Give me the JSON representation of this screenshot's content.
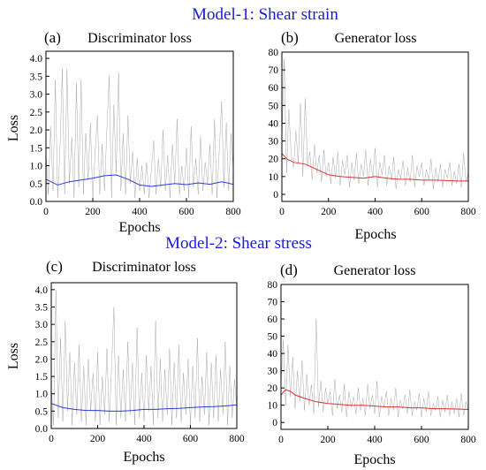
{
  "headings": {
    "model1": "Model-1: Shear strain",
    "model2": "Model-2: Shear stress"
  },
  "colors": {
    "heading": "#1a1ad6",
    "raw": "#8c8c8c",
    "disc_trend": "#2b3bd6",
    "gen_trend": "#e03030"
  },
  "chart_data": [
    {
      "id": "a",
      "type": "line",
      "panel_label": "(a)",
      "title": "Discriminator loss",
      "xlabel": "Epochs",
      "ylabel": "Loss",
      "xlim": [
        0,
        800
      ],
      "ylim": [
        0,
        4.2
      ],
      "xticks": [
        0,
        200,
        400,
        600,
        800
      ],
      "yticks": [
        0.0,
        0.5,
        1.0,
        1.5,
        2.0,
        2.5,
        3.0,
        3.5,
        4.0
      ],
      "ytick_labels": [
        "0.0",
        "0.5",
        "1.0",
        "1.5",
        "2.0",
        "2.5",
        "3.0",
        "3.5",
        "4.0"
      ],
      "grid": false,
      "series": [
        {
          "style": "raw",
          "x": [
            0,
            10,
            20,
            30,
            40,
            50,
            60,
            70,
            80,
            90,
            100,
            110,
            120,
            130,
            140,
            150,
            160,
            170,
            180,
            190,
            200,
            210,
            220,
            230,
            240,
            250,
            260,
            270,
            280,
            290,
            300,
            310,
            320,
            330,
            340,
            350,
            360,
            370,
            380,
            390,
            400,
            410,
            420,
            430,
            440,
            450,
            460,
            470,
            480,
            490,
            500,
            510,
            520,
            530,
            540,
            550,
            560,
            570,
            580,
            590,
            600,
            610,
            620,
            630,
            640,
            650,
            660,
            670,
            680,
            690,
            700,
            710,
            720,
            730,
            740,
            750,
            760,
            770,
            780,
            790,
            800
          ],
          "y": [
            1.4,
            0.2,
            2.1,
            0.3,
            3.4,
            0.1,
            1.5,
            3.7,
            0.2,
            3.7,
            0.5,
            1.8,
            0.1,
            3.3,
            0.4,
            3.4,
            0.2,
            1.9,
            0.6,
            2.2,
            0.1,
            1.4,
            2.4,
            0.2,
            1.6,
            0.3,
            2.0,
            3.5,
            0.1,
            2.7,
            0.8,
            3.6,
            0.3,
            1.9,
            0.2,
            2.4,
            0.5,
            1.4,
            0.1,
            1.2,
            0.3,
            1.0,
            0.2,
            1.1,
            0.1,
            0.9,
            1.7,
            0.2,
            1.2,
            0.4,
            2.0,
            0.3,
            1.3,
            0.1,
            1.6,
            0.5,
            2.3,
            0.2,
            1.0,
            0.3,
            1.5,
            0.1,
            2.1,
            0.4,
            1.2,
            0.2,
            1.8,
            0.3,
            1.1,
            0.5,
            1.6,
            0.2,
            2.3,
            0.1,
            1.4,
            2.8,
            0.4,
            2.2,
            0.3,
            1.9,
            0.9
          ]
        },
        {
          "style": "disc_trend",
          "x": [
            0,
            50,
            100,
            150,
            200,
            250,
            300,
            350,
            400,
            450,
            500,
            550,
            600,
            650,
            700,
            750,
            800
          ],
          "y": [
            0.62,
            0.46,
            0.55,
            0.6,
            0.65,
            0.72,
            0.74,
            0.62,
            0.46,
            0.42,
            0.46,
            0.5,
            0.47,
            0.52,
            0.48,
            0.55,
            0.48
          ]
        }
      ]
    },
    {
      "id": "b",
      "type": "line",
      "panel_label": "(b)",
      "title": "Generator loss",
      "xlabel": "Epochs",
      "ylabel": "",
      "xlim": [
        0,
        800
      ],
      "ylim": [
        -4,
        80
      ],
      "xticks": [
        0,
        200,
        400,
        600,
        800
      ],
      "yticks": [
        0,
        10,
        20,
        30,
        40,
        50,
        60,
        70,
        80
      ],
      "ytick_labels": [
        "0",
        "10",
        "20",
        "30",
        "40",
        "50",
        "60",
        "70",
        "80"
      ],
      "grid": false,
      "series": [
        {
          "style": "raw",
          "x": [
            0,
            10,
            20,
            30,
            40,
            50,
            60,
            70,
            80,
            90,
            100,
            110,
            120,
            130,
            140,
            150,
            160,
            170,
            180,
            190,
            200,
            210,
            220,
            230,
            240,
            250,
            260,
            270,
            280,
            290,
            300,
            310,
            320,
            330,
            340,
            350,
            360,
            370,
            380,
            390,
            400,
            410,
            420,
            430,
            440,
            450,
            460,
            470,
            480,
            490,
            500,
            510,
            520,
            530,
            540,
            550,
            560,
            570,
            580,
            590,
            600,
            610,
            620,
            630,
            640,
            650,
            660,
            670,
            680,
            690,
            700,
            710,
            720,
            730,
            740,
            750,
            760,
            770,
            780,
            790,
            800
          ],
          "y": [
            30,
            76,
            12,
            48,
            22,
            15,
            36,
            18,
            51,
            10,
            54,
            16,
            24,
            8,
            28,
            12,
            22,
            7,
            25,
            10,
            18,
            6,
            21,
            9,
            24,
            5,
            19,
            11,
            22,
            4,
            18,
            8,
            23,
            6,
            17,
            10,
            25,
            5,
            20,
            9,
            26,
            4,
            18,
            11,
            22,
            5,
            16,
            8,
            21,
            3,
            14,
            9,
            19,
            5,
            15,
            7,
            22,
            4,
            16,
            10,
            18,
            5,
            14,
            8,
            20,
            3,
            15,
            7,
            17,
            4,
            14,
            9,
            18,
            5,
            13,
            6,
            17,
            4,
            23,
            7,
            12
          ]
        },
        {
          "style": "gen_trend",
          "x": [
            0,
            20,
            50,
            100,
            150,
            200,
            250,
            300,
            350,
            400,
            450,
            500,
            550,
            600,
            650,
            700,
            750,
            800
          ],
          "y": [
            23,
            20,
            18,
            17,
            14,
            11,
            10,
            9.5,
            9,
            10,
            9,
            8.5,
            8.5,
            8,
            8,
            7.8,
            7.5,
            7.5
          ]
        }
      ]
    },
    {
      "id": "c",
      "type": "line",
      "panel_label": "(c)",
      "title": "Discriminator loss",
      "xlabel": "Epochs",
      "ylabel": "Loss",
      "xlim": [
        0,
        800
      ],
      "ylim": [
        0,
        4.2
      ],
      "xticks": [
        0,
        200,
        400,
        600,
        800
      ],
      "yticks": [
        0.0,
        0.5,
        1.0,
        1.5,
        2.0,
        2.5,
        3.0,
        3.5,
        4.0
      ],
      "ytick_labels": [
        "0.0",
        "0.5",
        "1.0",
        "1.5",
        "2.0",
        "2.5",
        "3.0",
        "3.5",
        "4.0"
      ],
      "grid": false,
      "series": [
        {
          "style": "raw",
          "x": [
            0,
            10,
            20,
            30,
            40,
            50,
            60,
            70,
            80,
            90,
            100,
            110,
            120,
            130,
            140,
            150,
            160,
            170,
            180,
            190,
            200,
            210,
            220,
            230,
            240,
            250,
            260,
            270,
            280,
            290,
            300,
            310,
            320,
            330,
            340,
            350,
            360,
            370,
            380,
            390,
            400,
            410,
            420,
            430,
            440,
            450,
            460,
            470,
            480,
            490,
            500,
            510,
            520,
            530,
            540,
            550,
            560,
            570,
            580,
            590,
            600,
            610,
            620,
            630,
            640,
            650,
            660,
            670,
            680,
            690,
            700,
            710,
            720,
            730,
            740,
            750,
            760,
            770,
            780,
            790,
            800
          ],
          "y": [
            1.2,
            0.1,
            4.0,
            0.3,
            2.6,
            0.2,
            3.1,
            0.5,
            2.2,
            0.1,
            1.9,
            0.4,
            2.4,
            0.2,
            1.8,
            0.1,
            2.0,
            0.5,
            1.6,
            0.2,
            2.2,
            0.1,
            1.5,
            0.4,
            2.3,
            0.2,
            1.8,
            3.5,
            0.1,
            2.1,
            0.3,
            1.7,
            0.2,
            2.5,
            0.4,
            1.9,
            0.1,
            2.9,
            0.3,
            1.6,
            0.2,
            2.1,
            0.5,
            1.8,
            0.1,
            3.1,
            0.3,
            2.0,
            0.2,
            1.7,
            0.4,
            2.3,
            0.1,
            1.9,
            0.3,
            2.4,
            0.2,
            1.6,
            0.4,
            2.0,
            0.1,
            1.8,
            0.3,
            2.6,
            0.2,
            1.5,
            0.4,
            2.2,
            0.1,
            1.9,
            0.3,
            2.1,
            0.2,
            1.7,
            0.4,
            2.5,
            0.1,
            1.8,
            0.3,
            1.4,
            0.6
          ]
        },
        {
          "style": "disc_trend",
          "x": [
            0,
            50,
            100,
            150,
            200,
            250,
            300,
            350,
            400,
            450,
            500,
            550,
            600,
            650,
            700,
            750,
            800
          ],
          "y": [
            0.72,
            0.6,
            0.55,
            0.52,
            0.52,
            0.5,
            0.5,
            0.52,
            0.55,
            0.55,
            0.57,
            0.58,
            0.6,
            0.62,
            0.63,
            0.65,
            0.68
          ]
        }
      ]
    },
    {
      "id": "d",
      "type": "line",
      "panel_label": "(d)",
      "title": "Generator loss",
      "xlabel": "Epochs",
      "ylabel": "",
      "xlim": [
        0,
        800
      ],
      "ylim": [
        -4,
        80
      ],
      "xticks": [
        0,
        200,
        400,
        600,
        800
      ],
      "yticks": [
        0,
        10,
        20,
        30,
        40,
        50,
        60,
        70,
        80
      ],
      "ytick_labels": [
        "0",
        "10",
        "20",
        "30",
        "40",
        "50",
        "60",
        "70",
        "80"
      ],
      "grid": false,
      "series": [
        {
          "style": "raw",
          "x": [
            0,
            10,
            20,
            30,
            40,
            50,
            60,
            70,
            80,
            90,
            100,
            110,
            120,
            130,
            140,
            150,
            160,
            170,
            180,
            190,
            200,
            210,
            220,
            230,
            240,
            250,
            260,
            270,
            280,
            290,
            300,
            310,
            320,
            330,
            340,
            350,
            360,
            370,
            380,
            390,
            400,
            410,
            420,
            430,
            440,
            450,
            460,
            470,
            480,
            490,
            500,
            510,
            520,
            530,
            540,
            550,
            560,
            570,
            580,
            590,
            600,
            610,
            620,
            630,
            640,
            650,
            660,
            670,
            680,
            690,
            700,
            710,
            720,
            730,
            740,
            750,
            760,
            770,
            780,
            790,
            800
          ],
          "y": [
            22,
            48,
            10,
            45,
            15,
            38,
            8,
            30,
            12,
            36,
            7,
            28,
            10,
            22,
            5,
            60,
            9,
            24,
            6,
            20,
            11,
            18,
            4,
            25,
            8,
            16,
            6,
            22,
            3,
            18,
            9,
            15,
            5,
            20,
            7,
            14,
            4,
            22,
            8,
            16,
            5,
            24,
            3,
            15,
            9,
            18,
            4,
            14,
            7,
            20,
            3,
            13,
            8,
            16,
            5,
            19,
            4,
            12,
            7,
            17,
            3,
            14,
            6,
            18,
            4,
            11,
            7,
            15,
            3,
            13,
            6,
            16,
            4,
            12,
            5,
            14,
            3,
            17,
            4,
            12,
            6
          ]
        },
        {
          "style": "gen_trend",
          "x": [
            0,
            20,
            40,
            60,
            100,
            150,
            200,
            250,
            300,
            350,
            400,
            450,
            500,
            550,
            600,
            650,
            700,
            750,
            800
          ],
          "y": [
            16,
            19,
            18,
            16,
            14,
            12,
            11,
            10.5,
            10,
            10,
            9.5,
            9,
            9,
            8.5,
            8.5,
            8,
            8,
            7.8,
            7.5
          ]
        }
      ]
    }
  ]
}
